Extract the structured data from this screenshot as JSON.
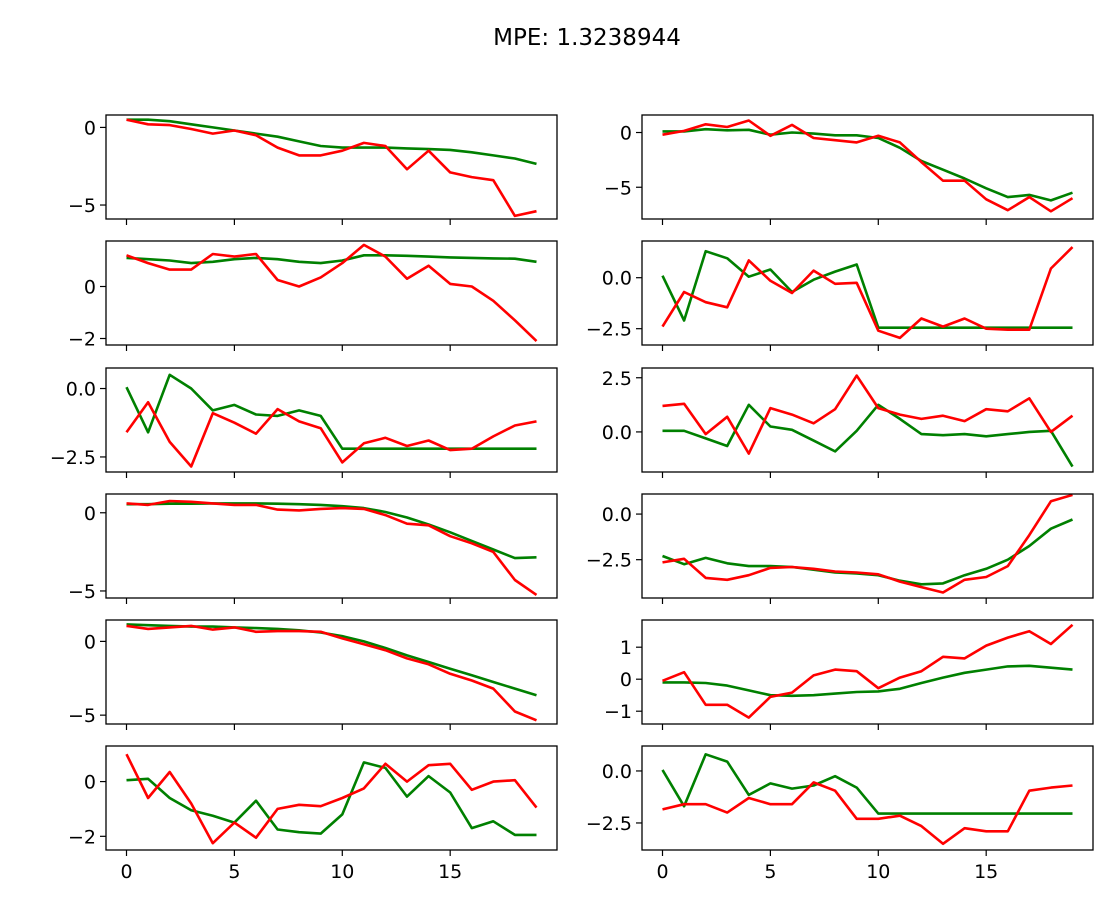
{
  "title": "MPE: 1.3238944",
  "colors": {
    "green": "#008000",
    "red": "#ff0000"
  },
  "chart_data": {
    "type": "line",
    "rows": 6,
    "cols": 2,
    "xlim": [
      -0.95,
      19.95
    ],
    "xticks": [
      0,
      5,
      10,
      15
    ],
    "xtick_labels": [
      "0",
      "5",
      "10",
      "15"
    ],
    "x": [
      0,
      1,
      2,
      3,
      4,
      5,
      6,
      7,
      8,
      9,
      10,
      11,
      12,
      13,
      14,
      15,
      16,
      17,
      18,
      19
    ],
    "subplots": [
      {
        "ylim": [
          -5.9,
          0.8
        ],
        "yticks": [
          0,
          -5
        ],
        "ytick_labels": [
          "0",
          "−5"
        ],
        "series": [
          {
            "color": "green",
            "values": [
              0.5,
              0.5,
              0.4,
              0.2,
              0.0,
              -0.2,
              -0.4,
              -0.6,
              -0.9,
              -1.2,
              -1.3,
              -1.3,
              -1.3,
              -1.35,
              -1.4,
              -1.45,
              -1.6,
              -1.8,
              -2.0,
              -2.35
            ]
          },
          {
            "color": "red",
            "values": [
              0.5,
              0.2,
              0.15,
              -0.1,
              -0.4,
              -0.2,
              -0.5,
              -1.3,
              -1.8,
              -1.8,
              -1.5,
              -1.0,
              -1.2,
              -2.7,
              -1.5,
              -2.9,
              -3.2,
              -3.4,
              -5.7,
              -5.4
            ]
          }
        ]
      },
      {
        "ylim": [
          -7.9,
          1.6
        ],
        "yticks": [
          0,
          -5
        ],
        "ytick_labels": [
          "0",
          "−5"
        ],
        "series": [
          {
            "color": "green",
            "values": [
              0.1,
              0.1,
              0.3,
              0.2,
              0.25,
              -0.2,
              0.0,
              -0.1,
              -0.25,
              -0.25,
              -0.5,
              -1.4,
              -2.6,
              -3.4,
              -4.2,
              -5.1,
              -5.9,
              -5.7,
              -6.2,
              -5.5
            ]
          },
          {
            "color": "red",
            "values": [
              -0.2,
              0.15,
              0.75,
              0.5,
              1.1,
              -0.3,
              0.7,
              -0.5,
              -0.7,
              -0.9,
              -0.3,
              -0.9,
              -2.7,
              -4.4,
              -4.4,
              -6.1,
              -7.1,
              -5.9,
              -7.2,
              -6.0
            ]
          }
        ]
      },
      {
        "ylim": [
          -2.25,
          1.75
        ],
        "yticks": [
          0,
          -2
        ],
        "ytick_labels": [
          "0",
          "−2"
        ],
        "series": [
          {
            "color": "green",
            "values": [
              1.1,
              1.05,
              1.0,
              0.9,
              0.95,
              1.05,
              1.1,
              1.05,
              0.95,
              0.9,
              1.0,
              1.2,
              1.2,
              1.18,
              1.15,
              1.12,
              1.1,
              1.08,
              1.07,
              0.95
            ]
          },
          {
            "color": "red",
            "values": [
              1.2,
              0.9,
              0.65,
              0.65,
              1.25,
              1.15,
              1.25,
              0.25,
              0.0,
              0.35,
              0.9,
              1.6,
              1.15,
              0.3,
              0.8,
              0.1,
              0.0,
              -0.55,
              -1.3,
              -2.1
            ]
          }
        ]
      },
      {
        "ylim": [
          -3.3,
          1.8
        ],
        "yticks": [
          0,
          -2.5
        ],
        "ytick_labels": [
          "0.0",
          "−2.5"
        ],
        "series": [
          {
            "color": "green",
            "values": [
              0.1,
              -2.1,
              1.3,
              0.95,
              0.05,
              0.4,
              -0.7,
              -0.1,
              0.3,
              0.65,
              -2.45,
              -2.45,
              -2.45,
              -2.45,
              -2.45,
              -2.45,
              -2.45,
              -2.45,
              -2.45,
              -2.45
            ]
          },
          {
            "color": "red",
            "values": [
              -2.4,
              -0.7,
              -1.2,
              -1.45,
              0.85,
              -0.15,
              -0.75,
              0.35,
              -0.3,
              -0.25,
              -2.6,
              -2.95,
              -2.0,
              -2.4,
              -2.0,
              -2.5,
              -2.55,
              -2.55,
              0.45,
              1.5
            ]
          }
        ]
      },
      {
        "ylim": [
          -3.05,
          0.75
        ],
        "yticks": [
          0,
          -2.5
        ],
        "ytick_labels": [
          "0.0",
          "−2.5"
        ],
        "series": [
          {
            "color": "green",
            "values": [
              0.05,
              -1.6,
              0.5,
              0.0,
              -0.8,
              -0.6,
              -0.95,
              -1.0,
              -0.8,
              -1.0,
              -2.2,
              -2.2,
              -2.2,
              -2.2,
              -2.2,
              -2.2,
              -2.2,
              -2.2,
              -2.2,
              -2.2
            ]
          },
          {
            "color": "red",
            "values": [
              -1.6,
              -0.5,
              -1.95,
              -2.85,
              -0.9,
              -1.25,
              -1.65,
              -0.75,
              -1.2,
              -1.45,
              -2.7,
              -2.0,
              -1.8,
              -2.1,
              -1.9,
              -2.25,
              -2.2,
              -1.75,
              -1.35,
              -1.2
            ]
          }
        ]
      },
      {
        "ylim": [
          -1.85,
          2.95
        ],
        "yticks": [
          2.5,
          0
        ],
        "ytick_labels": [
          "2.5",
          "0.0"
        ],
        "series": [
          {
            "color": "green",
            "values": [
              0.05,
              0.05,
              -0.3,
              -0.65,
              1.25,
              0.25,
              0.1,
              -0.4,
              -0.9,
              0.05,
              1.25,
              0.6,
              -0.1,
              -0.15,
              -0.1,
              -0.2,
              -0.1,
              0.0,
              0.05,
              -1.6
            ]
          },
          {
            "color": "red",
            "values": [
              1.2,
              1.3,
              -0.1,
              0.7,
              -1.0,
              1.1,
              0.8,
              0.4,
              1.05,
              2.6,
              1.1,
              0.8,
              0.6,
              0.75,
              0.5,
              1.05,
              0.95,
              1.55,
              0.0,
              0.75
            ]
          }
        ]
      },
      {
        "ylim": [
          -5.45,
          1.2
        ],
        "yticks": [
          0,
          -5
        ],
        "ytick_labels": [
          "0",
          "−5"
        ],
        "series": [
          {
            "color": "green",
            "values": [
              0.55,
              0.55,
              0.58,
              0.58,
              0.6,
              0.6,
              0.6,
              0.58,
              0.55,
              0.5,
              0.42,
              0.3,
              0.05,
              -0.3,
              -0.75,
              -1.25,
              -1.8,
              -2.35,
              -2.9,
              -2.85
            ]
          },
          {
            "color": "red",
            "values": [
              0.6,
              0.5,
              0.75,
              0.7,
              0.6,
              0.5,
              0.5,
              0.2,
              0.15,
              0.25,
              0.3,
              0.25,
              -0.15,
              -0.7,
              -0.8,
              -1.5,
              -1.95,
              -2.5,
              -4.3,
              -5.25
            ]
          }
        ]
      },
      {
        "ylim": [
          -4.6,
          1.1
        ],
        "yticks": [
          0,
          -2.5
        ],
        "ytick_labels": [
          "0.0",
          "−2.5"
        ],
        "series": [
          {
            "color": "green",
            "values": [
              -2.3,
              -2.75,
              -2.4,
              -2.7,
              -2.85,
              -2.85,
              -2.9,
              -3.05,
              -3.2,
              -3.25,
              -3.35,
              -3.65,
              -3.85,
              -3.8,
              -3.35,
              -3.0,
              -2.5,
              -1.75,
              -0.8,
              -0.3
            ]
          },
          {
            "color": "red",
            "values": [
              -2.65,
              -2.45,
              -3.5,
              -3.6,
              -3.35,
              -2.95,
              -2.9,
              -3.0,
              -3.15,
              -3.2,
              -3.3,
              -3.7,
              -4.0,
              -4.3,
              -3.6,
              -3.45,
              -2.85,
              -1.15,
              0.7,
              1.05
            ]
          }
        ]
      },
      {
        "ylim": [
          -5.6,
          1.45
        ],
        "yticks": [
          0,
          -5
        ],
        "ytick_labels": [
          "0",
          "−5"
        ],
        "series": [
          {
            "color": "green",
            "values": [
              1.15,
              1.1,
              1.05,
              1.0,
              1.0,
              0.95,
              0.9,
              0.85,
              0.75,
              0.6,
              0.35,
              0.0,
              -0.45,
              -0.95,
              -1.4,
              -1.85,
              -2.3,
              -2.75,
              -3.2,
              -3.65
            ]
          },
          {
            "color": "red",
            "values": [
              1.05,
              0.85,
              0.95,
              1.05,
              0.8,
              0.95,
              0.65,
              0.7,
              0.7,
              0.65,
              0.2,
              -0.2,
              -0.6,
              -1.15,
              -1.55,
              -2.2,
              -2.65,
              -3.2,
              -4.75,
              -5.35
            ]
          }
        ]
      },
      {
        "ylim": [
          -1.4,
          1.85
        ],
        "yticks": [
          1,
          0,
          -1
        ],
        "ytick_labels": [
          "1",
          "0",
          "−1"
        ],
        "series": [
          {
            "color": "green",
            "values": [
              -0.1,
              -0.1,
              -0.12,
              -0.2,
              -0.35,
              -0.5,
              -0.52,
              -0.5,
              -0.45,
              -0.4,
              -0.38,
              -0.3,
              -0.12,
              0.05,
              0.2,
              0.3,
              0.4,
              0.42,
              0.36,
              0.3
            ]
          },
          {
            "color": "red",
            "values": [
              -0.05,
              0.22,
              -0.8,
              -0.8,
              -1.2,
              -0.55,
              -0.42,
              0.12,
              0.3,
              0.25,
              -0.28,
              0.05,
              0.25,
              0.7,
              0.65,
              1.05,
              1.3,
              1.5,
              1.1,
              1.7
            ]
          }
        ]
      },
      {
        "ylim": [
          -2.5,
          1.3
        ],
        "yticks": [
          0,
          -2
        ],
        "ytick_labels": [
          "0",
          "−2"
        ],
        "series": [
          {
            "color": "green",
            "values": [
              0.05,
              0.1,
              -0.6,
              -1.05,
              -1.25,
              -1.5,
              -0.7,
              -1.75,
              -1.85,
              -1.9,
              -1.2,
              0.7,
              0.5,
              -0.55,
              0.2,
              -0.4,
              -1.7,
              -1.45,
              -1.95,
              -1.95
            ]
          },
          {
            "color": "red",
            "values": [
              1.0,
              -0.6,
              0.35,
              -0.8,
              -2.25,
              -1.5,
              -2.05,
              -1.0,
              -0.85,
              -0.9,
              -0.6,
              -0.25,
              0.65,
              0.0,
              0.6,
              0.65,
              -0.3,
              0.0,
              0.05,
              -0.95
            ]
          }
        ]
      },
      {
        "ylim": [
          -3.8,
          1.2
        ],
        "yticks": [
          0,
          -2.5
        ],
        "ytick_labels": [
          "0.0",
          "−2.5"
        ],
        "series": [
          {
            "color": "green",
            "values": [
              0.05,
              -1.7,
              0.8,
              0.45,
              -1.15,
              -0.6,
              -0.85,
              -0.7,
              -0.25,
              -0.8,
              -2.05,
              -2.05,
              -2.05,
              -2.05,
              -2.05,
              -2.05,
              -2.05,
              -2.05,
              -2.05,
              -2.05
            ]
          },
          {
            "color": "red",
            "values": [
              -1.85,
              -1.6,
              -1.6,
              -2.0,
              -1.3,
              -1.6,
              -1.6,
              -0.55,
              -0.95,
              -2.3,
              -2.3,
              -2.15,
              -2.65,
              -3.5,
              -2.75,
              -2.9,
              -2.9,
              -0.95,
              -0.8,
              -0.7
            ]
          }
        ]
      }
    ]
  }
}
